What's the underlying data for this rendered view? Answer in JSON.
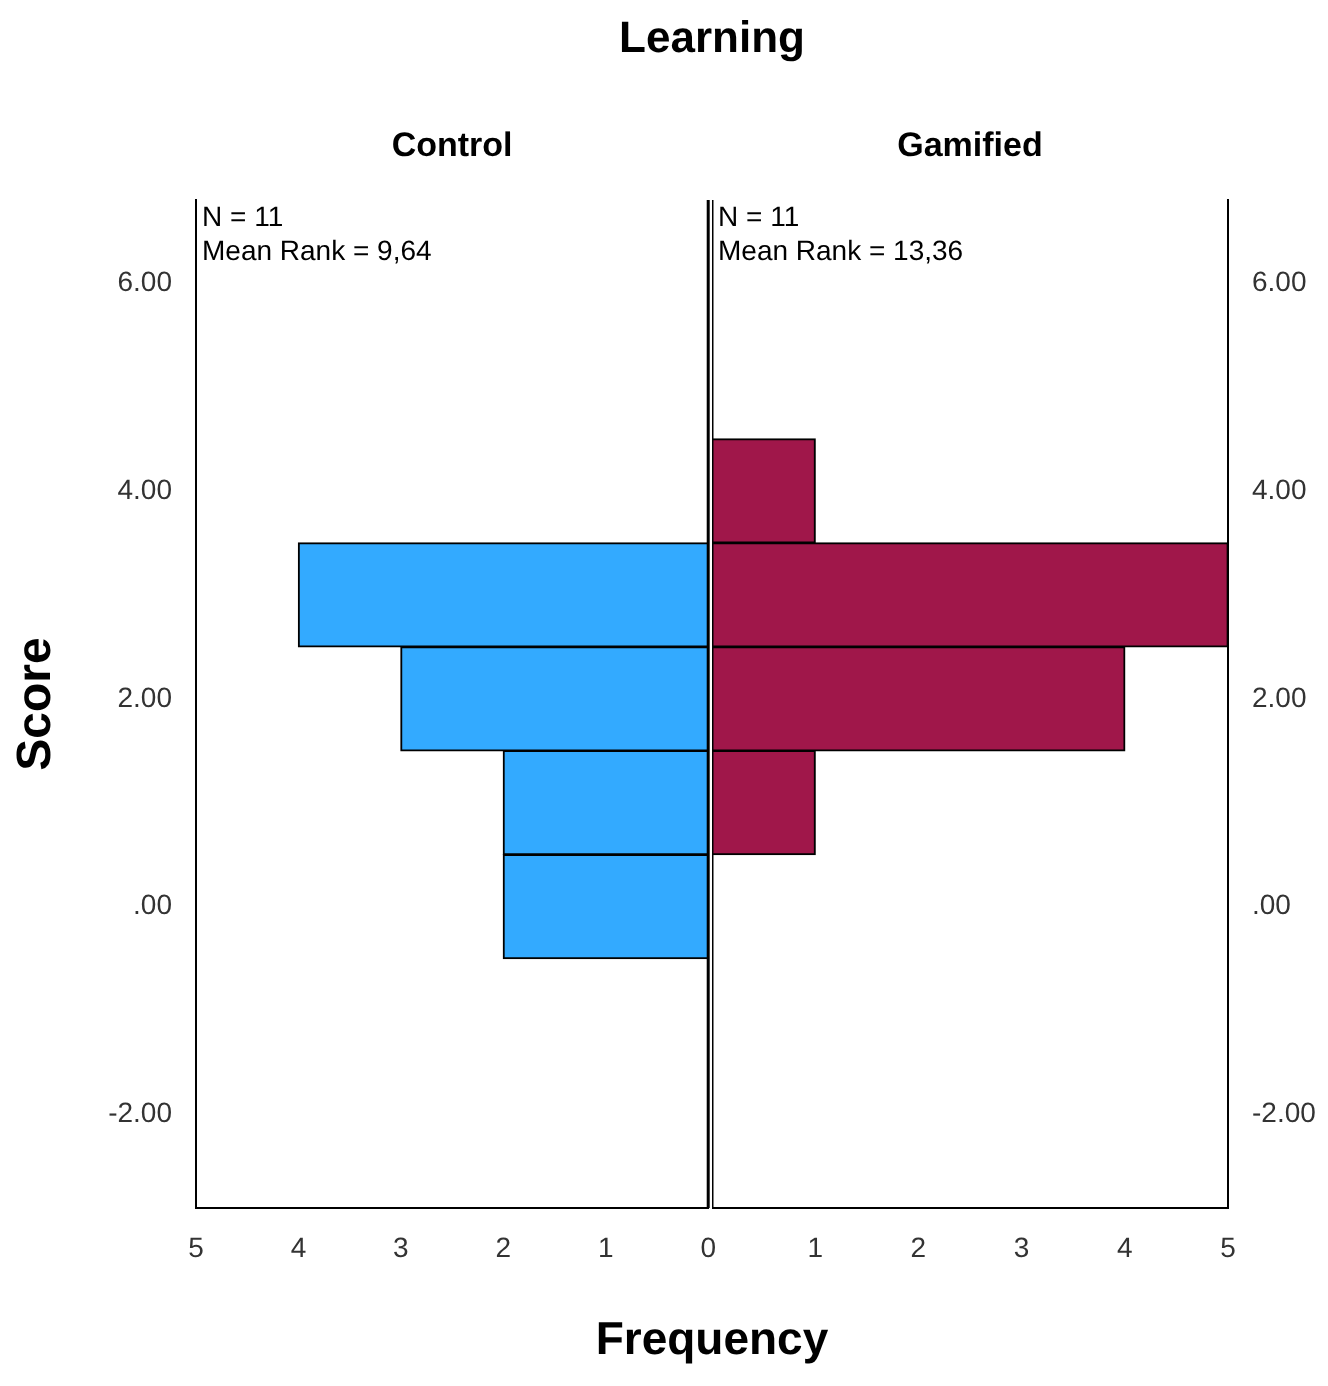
{
  "chart_data": [
    {
      "type": "histogram",
      "orientation": "horizontal",
      "title": "Learning",
      "subtitle": "Control",
      "xlabel": "Frequency",
      "ylabel": "Score",
      "bins": [
        -0.5,
        0.5,
        1.5,
        2.5,
        3.5,
        4.5
      ],
      "values": [
        2,
        2,
        3,
        4,
        0
      ],
      "color": "#33aaff",
      "xlim": [
        5,
        0
      ],
      "xticks": [
        5,
        4,
        3,
        2,
        1,
        0
      ],
      "ylim": [
        -2.9,
        6.8
      ],
      "yticks": [
        {
          "value": -2,
          "label": "-2.00"
        },
        {
          "value": 0,
          "label": ".00"
        },
        {
          "value": 2,
          "label": "2.00"
        },
        {
          "value": 4,
          "label": "4.00"
        },
        {
          "value": 6,
          "label": "6.00"
        }
      ],
      "annotations": [
        "N = 11",
        "Mean Rank = 9,64"
      ],
      "grid": false
    },
    {
      "type": "histogram",
      "orientation": "horizontal",
      "subtitle": "Gamified",
      "bins": [
        -0.5,
        0.5,
        1.5,
        2.5,
        3.5,
        4.5
      ],
      "values": [
        0,
        1,
        4,
        5,
        1
      ],
      "color": "#a0174a",
      "xlim": [
        0,
        5
      ],
      "xticks": [
        1,
        2,
        3,
        4,
        5
      ],
      "ylim": [
        -2.9,
        6.8
      ],
      "yticks": [
        {
          "value": -2,
          "label": "-2.00"
        },
        {
          "value": 0,
          "label": ".00"
        },
        {
          "value": 2,
          "label": "2.00"
        },
        {
          "value": 4,
          "label": "4.00"
        },
        {
          "value": 6,
          "label": "6.00"
        }
      ],
      "annotations": [
        "N = 11",
        "Mean Rank = 13,36"
      ],
      "grid": false
    }
  ]
}
